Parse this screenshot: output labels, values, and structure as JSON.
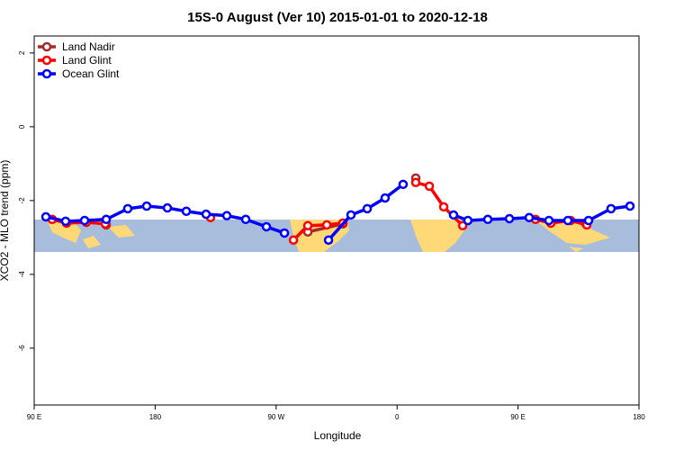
{
  "chart_data": {
    "type": "line",
    "title": "15S-0 August (Ver 10)   2015-01-01 to 2020-12-18",
    "xlabel": "Longitude",
    "ylabel": "XCO2 - MLO trend (ppm)",
    "xlim": [
      90,
      540
    ],
    "ylim": [
      -7.54,
      2.46
    ],
    "xticks": [
      {
        "value": 90,
        "label": "90 E"
      },
      180,
      {
        "value": 270,
        "label": "90 W"
      },
      {
        "value": 360,
        "label": "0"
      },
      {
        "value": 450,
        "label": "90 E"
      },
      {
        "value": 540,
        "label": "180"
      }
    ],
    "yticks": [
      2,
      0,
      -2,
      -4,
      -6
    ],
    "legend": "top-left",
    "series": [
      {
        "name": "Land Nadir",
        "color": "#a52a2a",
        "x": [
          143.6,
          null,
          293.6,
          319.7,
          null,
          373.9,
          null,
          500.5
        ],
        "values": [
          -2.66,
          null,
          -2.85,
          -2.63,
          null,
          -1.39,
          null,
          -2.63
        ]
      },
      {
        "name": "Land Glint",
        "color": "#ff0000",
        "x": [
          103.4,
          114.1,
          128.8,
          142.9,
          null,
          221.2,
          null,
          282.9,
          293.6,
          307.7,
          319.7,
          null,
          373.9,
          384.0,
          394.7,
          408.8,
          null,
          463.0,
          474.4,
          489.1,
          501.2
        ],
        "values": [
          -2.51,
          -2.61,
          -2.59,
          -2.63,
          null,
          -2.46,
          null,
          -3.07,
          -2.68,
          -2.66,
          -2.61,
          null,
          -1.51,
          -1.61,
          -2.17,
          -2.68,
          null,
          -2.51,
          -2.61,
          -2.54,
          -2.66
        ]
      },
      {
        "name": "Ocean Glint",
        "color": "#0000ff",
        "x": [
          98.7,
          113.4,
          127.5,
          143.6,
          159.6,
          173.7,
          189.1,
          203.2,
          217.9,
          233.3,
          247.4,
          262.8,
          276.2,
          null,
          309.0,
          325.7,
          337.8,
          351.1,
          364.5,
          null,
          402.0,
          412.7,
          427.5,
          443.6,
          458.3,
          473.0,
          487.1,
          502.5,
          519.2,
          533.3
        ],
        "values": [
          -2.44,
          -2.56,
          -2.54,
          -2.51,
          -2.22,
          -2.15,
          -2.2,
          -2.29,
          -2.37,
          -2.41,
          -2.51,
          -2.71,
          -2.88,
          null,
          -3.07,
          -2.39,
          -2.22,
          -1.93,
          -1.56,
          null,
          -2.39,
          -2.54,
          -2.51,
          -2.49,
          -2.46,
          -2.54,
          -2.54,
          -2.54,
          -2.22,
          -2.15
        ]
      }
    ]
  }
}
